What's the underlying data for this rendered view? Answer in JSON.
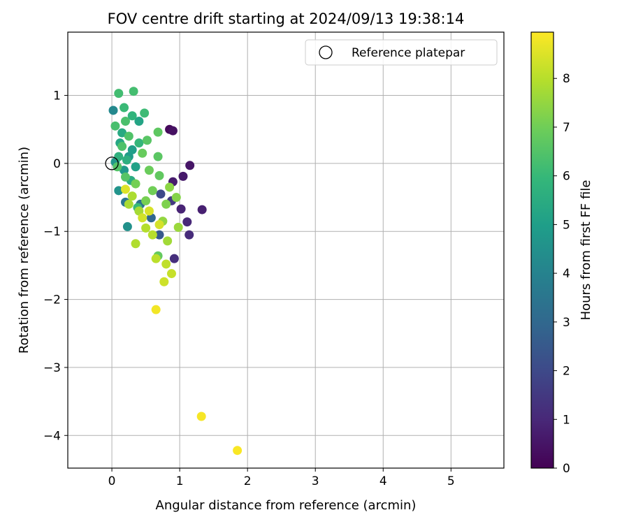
{
  "chart_data": {
    "type": "scatter",
    "title": "FOV centre drift starting at 2024/09/13 19:38:14",
    "xlabel": "Angular distance from reference (arcmin)",
    "ylabel": "Rotation from reference (arcmin)",
    "xlim": [
      -0.65,
      5.78
    ],
    "ylim": [
      -4.48,
      1.93
    ],
    "x_ticks": [
      0,
      1,
      2,
      3,
      4,
      5
    ],
    "x_tick_labels": [
      "0",
      "1",
      "2",
      "3",
      "4",
      "5"
    ],
    "y_ticks": [
      1,
      0,
      -1,
      -2,
      -3,
      -4
    ],
    "y_tick_labels": [
      "1",
      "0",
      "−1",
      "−2",
      "−3",
      "−4"
    ],
    "grid": true,
    "legend": {
      "placement": "top-right",
      "entries": [
        {
          "label": "Reference platepar",
          "marker": "open-circle",
          "x": 0,
          "y": 0
        }
      ]
    },
    "colorbar": {
      "label": "Hours from first FF file",
      "colormap": "viridis",
      "range": [
        0,
        8.95
      ],
      "ticks": [
        0,
        1,
        2,
        3,
        4,
        5,
        6,
        7,
        8
      ],
      "tick_labels": [
        "0",
        "1",
        "2",
        "3",
        "4",
        "5",
        "6",
        "7",
        "8"
      ]
    },
    "points": [
      {
        "x": 0.85,
        "y": 0.5,
        "c": 0.2
      },
      {
        "x": 0.9,
        "y": 0.48,
        "c": 0.4
      },
      {
        "x": 1.15,
        "y": -0.03,
        "c": 0.5
      },
      {
        "x": 1.05,
        "y": -0.19,
        "c": 0.6
      },
      {
        "x": 0.9,
        "y": -0.27,
        "c": 0.7
      },
      {
        "x": 1.33,
        "y": -0.68,
        "c": 0.8
      },
      {
        "x": 1.02,
        "y": -0.67,
        "c": 0.9
      },
      {
        "x": 1.11,
        "y": -0.86,
        "c": 1.0
      },
      {
        "x": 1.14,
        "y": -1.05,
        "c": 1.1
      },
      {
        "x": 0.92,
        "y": -1.4,
        "c": 1.2
      },
      {
        "x": 0.88,
        "y": -0.55,
        "c": 1.5
      },
      {
        "x": 0.72,
        "y": -0.45,
        "c": 2.0
      },
      {
        "x": 0.7,
        "y": -1.05,
        "c": 2.5
      },
      {
        "x": 0.58,
        "y": -0.8,
        "c": 3.0
      },
      {
        "x": 0.42,
        "y": -0.6,
        "c": 3.3
      },
      {
        "x": 0.2,
        "y": -0.57,
        "c": 3.5
      },
      {
        "x": 0.02,
        "y": 0.78,
        "c": 4.2
      },
      {
        "x": 0.23,
        "y": -0.93,
        "c": 4.5
      },
      {
        "x": 0.1,
        "y": -0.4,
        "c": 4.6
      },
      {
        "x": 0.05,
        "y": 0.02,
        "c": 4.7
      },
      {
        "x": 0.18,
        "y": -0.1,
        "c": 4.8
      },
      {
        "x": 0.25,
        "y": 0.1,
        "c": 4.9
      },
      {
        "x": 0.3,
        "y": 0.2,
        "c": 5.0
      },
      {
        "x": 0.35,
        "y": -0.05,
        "c": 5.1
      },
      {
        "x": 0.4,
        "y": 0.62,
        "c": 5.2
      },
      {
        "x": 0.12,
        "y": 0.3,
        "c": 5.3
      },
      {
        "x": 0.15,
        "y": 0.45,
        "c": 5.4
      },
      {
        "x": 0.28,
        "y": -0.25,
        "c": 5.5
      },
      {
        "x": 0.22,
        "y": 0.05,
        "c": 5.6
      },
      {
        "x": 0.1,
        "y": 0.1,
        "c": 5.7
      },
      {
        "x": 0.3,
        "y": 0.7,
        "c": 5.8
      },
      {
        "x": 0.4,
        "y": 0.3,
        "c": 5.9
      },
      {
        "x": 0.38,
        "y": -0.65,
        "c": 6.0
      },
      {
        "x": 0.18,
        "y": 0.82,
        "c": 6.05
      },
      {
        "x": 0.48,
        "y": 0.74,
        "c": 6.1
      },
      {
        "x": 0.1,
        "y": 1.03,
        "c": 6.2
      },
      {
        "x": 0.32,
        "y": 1.06,
        "c": 6.25
      },
      {
        "x": 0.05,
        "y": 0.55,
        "c": 6.3
      },
      {
        "x": 0.2,
        "y": 0.62,
        "c": 6.35
      },
      {
        "x": 0.15,
        "y": 0.25,
        "c": 6.4
      },
      {
        "x": 0.25,
        "y": 0.4,
        "c": 6.45
      },
      {
        "x": 0.08,
        "y": -0.05,
        "c": 6.5
      },
      {
        "x": 0.2,
        "y": -0.2,
        "c": 6.55
      },
      {
        "x": 0.52,
        "y": 0.34,
        "c": 6.6
      },
      {
        "x": 0.68,
        "y": 0.1,
        "c": 6.65
      },
      {
        "x": 0.68,
        "y": 0.46,
        "c": 6.7
      },
      {
        "x": 0.7,
        "y": -0.18,
        "c": 6.75
      },
      {
        "x": 0.68,
        "y": -1.36,
        "c": 6.8
      },
      {
        "x": 0.45,
        "y": 0.15,
        "c": 6.85
      },
      {
        "x": 0.55,
        "y": -0.1,
        "c": 6.9
      },
      {
        "x": 0.6,
        "y": -0.4,
        "c": 7.0
      },
      {
        "x": 0.35,
        "y": -0.3,
        "c": 7.05
      },
      {
        "x": 0.5,
        "y": -0.55,
        "c": 7.1
      },
      {
        "x": 0.8,
        "y": -0.6,
        "c": 7.2
      },
      {
        "x": 0.95,
        "y": -0.5,
        "c": 7.3
      },
      {
        "x": 0.85,
        "y": -0.35,
        "c": 7.4
      },
      {
        "x": 0.75,
        "y": -0.85,
        "c": 7.5
      },
      {
        "x": 0.98,
        "y": -0.94,
        "c": 7.6
      },
      {
        "x": 0.82,
        "y": -1.14,
        "c": 7.7
      },
      {
        "x": 0.4,
        "y": -0.7,
        "c": 7.75
      },
      {
        "x": 0.25,
        "y": -0.6,
        "c": 7.8
      },
      {
        "x": 0.3,
        "y": -0.48,
        "c": 7.85
      },
      {
        "x": 0.35,
        "y": -1.18,
        "c": 7.9
      },
      {
        "x": 0.5,
        "y": -0.95,
        "c": 7.95
      },
      {
        "x": 0.6,
        "y": -1.05,
        "c": 8.0
      },
      {
        "x": 0.65,
        "y": -1.4,
        "c": 8.05
      },
      {
        "x": 0.8,
        "y": -1.48,
        "c": 8.1
      },
      {
        "x": 0.88,
        "y": -1.62,
        "c": 8.2
      },
      {
        "x": 0.77,
        "y": -1.74,
        "c": 8.3
      },
      {
        "x": 0.45,
        "y": -0.8,
        "c": 8.35
      },
      {
        "x": 0.7,
        "y": -0.9,
        "c": 8.4
      },
      {
        "x": 0.55,
        "y": -0.7,
        "c": 8.45
      },
      {
        "x": 0.2,
        "y": -0.38,
        "c": 8.5
      },
      {
        "x": 0.65,
        "y": -2.15,
        "c": 8.8
      },
      {
        "x": 1.32,
        "y": -3.72,
        "c": 8.85
      },
      {
        "x": 1.85,
        "y": -4.22,
        "c": 8.9
      }
    ]
  }
}
